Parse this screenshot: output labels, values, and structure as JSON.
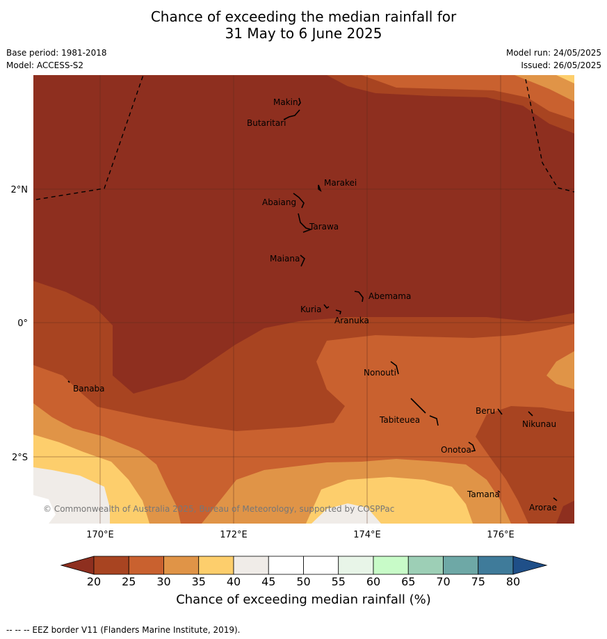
{
  "header": {
    "title_line1": "Chance of exceeding the median rainfall for",
    "title_line2": "31 May to 6 June 2025",
    "base_period": "Base period: 1981-2018",
    "model": "Model: ACCESS-S2",
    "model_run": "Model run: 24/05/2025",
    "issued": "Issued: 26/05/2025"
  },
  "map": {
    "lat_labels": [
      "2°N",
      "0°",
      "2°S"
    ],
    "lon_labels": [
      "170°E",
      "172°E",
      "174°E",
      "176°E"
    ],
    "places": [
      "Makin",
      "Butaritari",
      "Marakei",
      "Abaiang",
      "Tarawa",
      "Maiana",
      "Abemama",
      "Kuria",
      "Aranuka",
      "Nonouti",
      "Banaba",
      "Tabiteuea",
      "Beru",
      "Nikunau",
      "Onotoa",
      "Tamana",
      "Arorae"
    ],
    "copyright": "© Commonwealth of Australia 2025, Bureau of Meteorology, supported by COSPPac"
  },
  "colorbar": {
    "ticks": [
      "20",
      "25",
      "30",
      "35",
      "40",
      "45",
      "50",
      "55",
      "60",
      "65",
      "70",
      "75",
      "80"
    ],
    "colors": [
      "#a84421",
      "#c9612f",
      "#e09447",
      "#fdce6c",
      "#f0ece8",
      "#ffffff",
      "#ffffff",
      "#e8f5e8",
      "#c8fbc8",
      "#9dcfb6",
      "#6ea8a6",
      "#3f7b9a"
    ],
    "under_color": "#8e2f1f",
    "over_color": "#1f4f88",
    "label": "Chance of exceeding median rainfall (%)"
  },
  "footnote": "--  --  -- EEZ border V11 (Flanders Marine Institute, 2019)."
}
